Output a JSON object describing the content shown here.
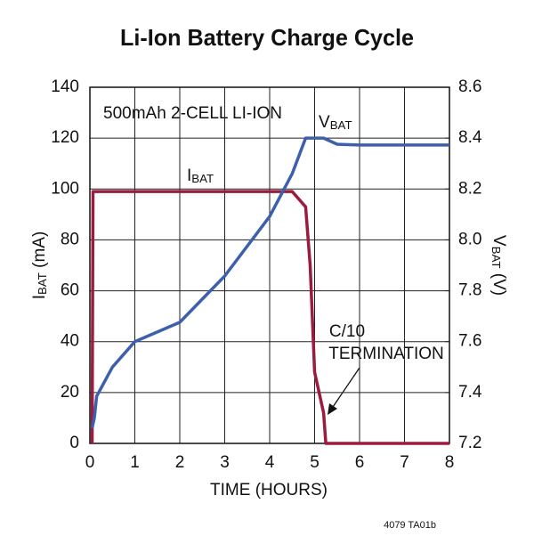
{
  "chart_data": {
    "type": "line",
    "title": "Li-Ion Battery Charge Cycle",
    "x_label": "TIME (HOURS)",
    "y_label": "IBAT (mA)",
    "y2_label": "VBAT (V)",
    "annotations": [
      "500mAh 2-CELL LI-ION",
      "C/10",
      "TERMINATION"
    ],
    "footnote": "4079 TA01b",
    "xlim": [
      0,
      8
    ],
    "xticks": [
      0,
      1,
      2,
      3,
      4,
      5,
      6,
      7,
      8
    ],
    "ylim": [
      0,
      140
    ],
    "yticks": [
      0,
      20,
      40,
      60,
      80,
      100,
      120,
      140
    ],
    "y2lim": [
      7.2,
      8.6
    ],
    "y2ticks": [
      7.2,
      7.4,
      7.6,
      7.8,
      {
        "value": 8,
        "label": "8.0"
      },
      8.2,
      8.4,
      8.6
    ],
    "grid": true,
    "series": [
      {
        "name": "IBAT",
        "color": "#9b1c3f",
        "x": [
          0.05,
          0.07,
          4.5,
          4.8,
          4.9,
          5.0,
          5.2,
          5.25,
          8
        ],
        "values": [
          0,
          99,
          99,
          93,
          70,
          28,
          12,
          0,
          0
        ]
      },
      {
        "name": "VBAT",
        "color": "#3d5fac",
        "axis": "y2",
        "x": [
          0.05,
          0.1,
          0.15,
          0.5,
          1,
          2,
          3,
          4,
          4.5,
          4.8,
          5.2,
          5.5,
          6,
          8
        ],
        "values": [
          7.26,
          7.3,
          7.385,
          7.5,
          7.6,
          7.676,
          7.858,
          8.092,
          8.26,
          8.4,
          8.4,
          8.376,
          8.373,
          8.373
        ]
      }
    ]
  }
}
